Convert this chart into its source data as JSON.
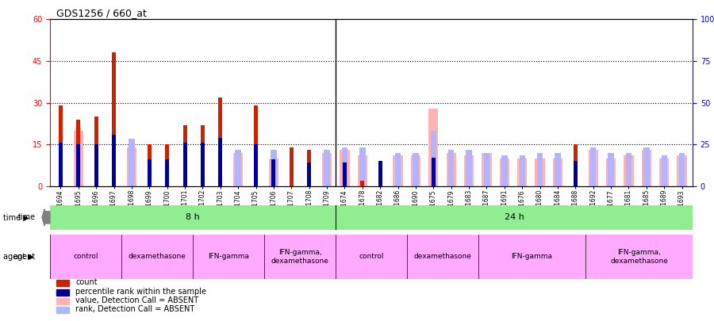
{
  "title": "GDS1256 / 660_at",
  "samples": [
    "GSM31694",
    "GSM31695",
    "GSM31696",
    "GSM31697",
    "GSM31698",
    "GSM31699",
    "GSM31700",
    "GSM31701",
    "GSM31702",
    "GSM31703",
    "GSM31704",
    "GSM31705",
    "GSM31706",
    "GSM31707",
    "GSM31708",
    "GSM31709",
    "GSM31674",
    "GSM31678",
    "GSM31682",
    "GSM31686",
    "GSM31690",
    "GSM31675",
    "GSM31679",
    "GSM31683",
    "GSM31687",
    "GSM31691",
    "GSM31676",
    "GSM31680",
    "GSM31684",
    "GSM31688",
    "GSM31692",
    "GSM31677",
    "GSM31681",
    "GSM31685",
    "GSM31689",
    "GSM31693"
  ],
  "count": [
    29,
    24,
    25,
    48,
    0,
    15,
    15,
    22,
    22,
    32,
    0,
    29,
    0,
    14,
    13,
    0,
    0,
    2,
    2,
    0,
    0,
    1,
    0,
    0,
    0,
    0,
    0,
    0,
    0,
    15,
    0,
    0,
    0,
    0,
    0,
    0
  ],
  "percentile": [
    26,
    25,
    25,
    31,
    0,
    16,
    16,
    26,
    26,
    29,
    0,
    25,
    16,
    0,
    14,
    0,
    14,
    0,
    15,
    0,
    0,
    17,
    0,
    0,
    0,
    0,
    0,
    0,
    0,
    15,
    0,
    0,
    0,
    0,
    0,
    0
  ],
  "value_absent": [
    0,
    20,
    0,
    0,
    14,
    0,
    0,
    0,
    0,
    0,
    12,
    0,
    10,
    0,
    0,
    12,
    13,
    11,
    0,
    11,
    11,
    28,
    12,
    11,
    12,
    10,
    10,
    10,
    10,
    0,
    13,
    10,
    11,
    13,
    10,
    11
  ],
  "rank_absent": [
    0,
    21,
    0,
    0,
    17,
    0,
    0,
    0,
    0,
    0,
    13,
    0,
    13,
    0,
    0,
    13,
    14,
    14,
    0,
    12,
    12,
    20,
    13,
    13,
    12,
    11,
    11,
    12,
    12,
    0,
    14,
    12,
    12,
    14,
    11,
    12
  ],
  "time_groups": [
    {
      "label": "8 h",
      "start": 0,
      "end": 16,
      "color": "#90ee90"
    },
    {
      "label": "24 h",
      "start": 16,
      "end": 36,
      "color": "#90ee90"
    }
  ],
  "agent_groups": [
    {
      "label": "control",
      "start": 0,
      "end": 4,
      "color": "#ffb3ff"
    },
    {
      "label": "dexamethasone",
      "start": 4,
      "end": 8,
      "color": "#ffb3ff"
    },
    {
      "label": "IFN-gamma",
      "start": 8,
      "end": 12,
      "color": "#ffb3ff"
    },
    {
      "label": "IFN-gamma,\ndexamethasone",
      "start": 12,
      "end": 16,
      "color": "#ffb3ff"
    },
    {
      "label": "control",
      "start": 16,
      "end": 20,
      "color": "#ffb3ff"
    },
    {
      "label": "dexamethasone",
      "start": 20,
      "end": 24,
      "color": "#ffb3ff"
    },
    {
      "label": "IFN-gamma",
      "start": 24,
      "end": 30,
      "color": "#ffb3ff"
    },
    {
      "label": "IFN-gamma,\ndexamethasone",
      "start": 30,
      "end": 36,
      "color": "#ffb3ff"
    }
  ],
  "ylim_left": [
    0,
    60
  ],
  "ylim_right": [
    0,
    100
  ],
  "yticks_left": [
    0,
    15,
    30,
    45,
    60
  ],
  "yticks_right": [
    0,
    25,
    50,
    75,
    100
  ],
  "bar_width": 0.55,
  "count_color": "#cc2200",
  "percentile_color": "#000099",
  "value_absent_color": "#ffb3b3",
  "rank_absent_color": "#b3b3ff",
  "time_color": "#90ee90",
  "agent_color": "#ffaaff",
  "bg_color": "#f0f0f0"
}
